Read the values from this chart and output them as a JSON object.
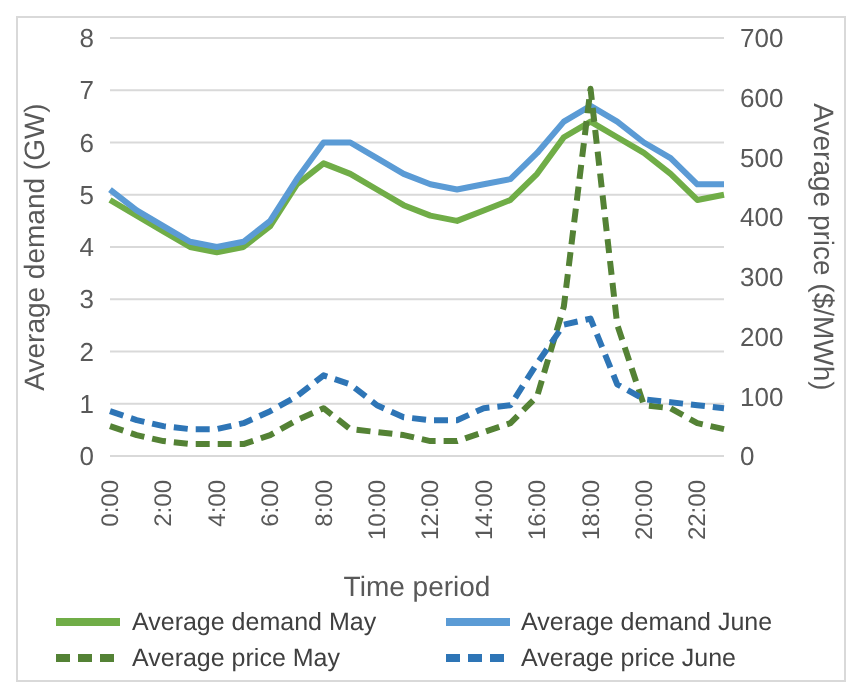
{
  "chart_data": {
    "type": "line",
    "xlabel": "Time period",
    "ylabel": "Average demand (GW)",
    "y2label": "Average price ($/MWh)",
    "categories": [
      "0:00",
      null,
      "2:00",
      null,
      "4:00",
      null,
      "6:00",
      null,
      "8:00",
      null,
      "10:00",
      null,
      "12:00",
      null,
      "14:00",
      null,
      "16:00",
      null,
      "18:00",
      null,
      "20:00",
      null,
      "22:00",
      null
    ],
    "ylim": [
      0,
      8
    ],
    "yticks": [
      0,
      1,
      2,
      3,
      4,
      5,
      6,
      7,
      8
    ],
    "y2lim": [
      0,
      700
    ],
    "y2ticks": [
      0,
      100,
      200,
      300,
      400,
      500,
      600,
      700
    ],
    "grid": "y",
    "legend": "bottom",
    "marker": "none",
    "series": [
      {
        "name": "Average demand May",
        "color": "#70ad47",
        "line_style": "solid",
        "values": [
          4.9,
          4.6,
          4.3,
          4.0,
          3.9,
          4.0,
          4.4,
          5.2,
          5.6,
          5.4,
          5.1,
          4.8,
          4.6,
          4.5,
          4.7,
          4.9,
          5.4,
          6.1,
          6.4,
          6.1,
          5.8,
          5.4,
          4.9,
          5.0
        ]
      },
      {
        "name": "Average demand June",
        "color": "#5b9bd5",
        "line_style": "solid",
        "values": [
          5.1,
          4.7,
          4.4,
          4.1,
          4.0,
          4.1,
          4.5,
          5.3,
          6.0,
          6.0,
          5.7,
          5.4,
          5.2,
          5.1,
          5.2,
          5.3,
          5.8,
          6.4,
          6.7,
          6.4,
          6.0,
          5.7,
          5.2,
          5.2
        ]
      },
      {
        "name": "Average price May",
        "color": "#548235",
        "line_style": "dashed",
        "axis": "y2",
        "values": [
          50,
          35,
          25,
          20,
          20,
          20,
          35,
          60,
          80,
          45,
          40,
          35,
          25,
          25,
          40,
          55,
          100,
          250,
          615,
          220,
          85,
          80,
          55,
          45
        ]
      },
      {
        "name": "Average price June",
        "color": "#2e75b6",
        "line_style": "dashed",
        "axis": "y2",
        "values": [
          75,
          60,
          50,
          45,
          45,
          55,
          75,
          100,
          135,
          120,
          85,
          65,
          60,
          60,
          80,
          85,
          155,
          220,
          230,
          120,
          95,
          90,
          85,
          80
        ]
      }
    ]
  }
}
